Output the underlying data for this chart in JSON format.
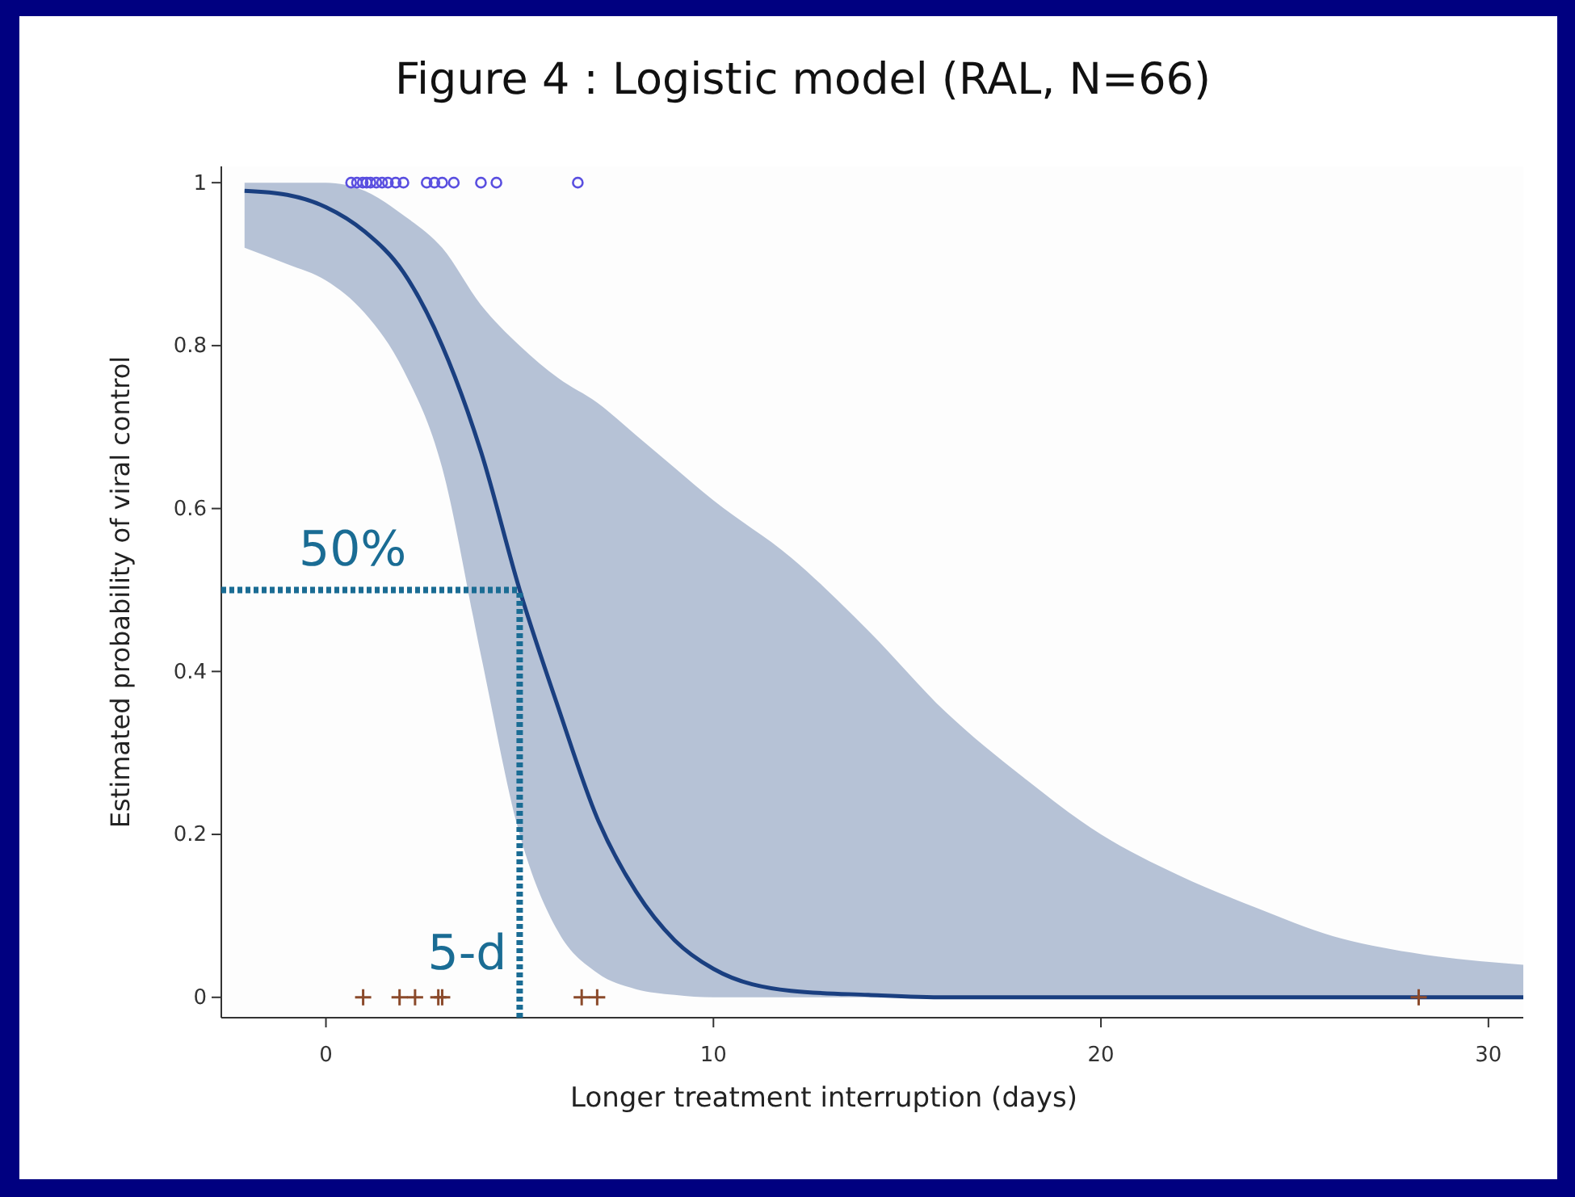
{
  "chart_data": {
    "type": "line",
    "title": "Figure 4 : Logistic model (RAL, N=66)",
    "xlabel": "Longer treatment interruption (days)",
    "ylabel": "Estimated probability of viral control",
    "xlim": [
      -2.7,
      30.9
    ],
    "xticks": [
      0,
      10,
      20,
      30
    ],
    "ylim": [
      -0.025,
      1.02
    ],
    "yticks": [
      0,
      0.2,
      0.4,
      0.6,
      0.8,
      1
    ],
    "grid": false,
    "series": [
      {
        "color": "#1a3f80",
        "line_style": "solid",
        "x": [
          -2.1,
          -1,
          0,
          1,
          2,
          3,
          4,
          5,
          6,
          7,
          8,
          9,
          10,
          12,
          14,
          16,
          18,
          20,
          22,
          24,
          26,
          28,
          30.9
        ],
        "values": [
          0.99,
          0.985,
          0.97,
          0.94,
          0.89,
          0.8,
          0.67,
          0.5,
          0.355,
          0.22,
          0.13,
          0.07,
          0.035,
          0.008,
          0.003,
          0,
          0,
          0,
          0,
          0,
          0,
          0,
          0
        ],
        "lower": [
          0.92,
          0.9,
          0.88,
          0.84,
          0.77,
          0.65,
          0.42,
          0.2,
          0.08,
          0.03,
          0.01,
          0.003,
          0,
          0,
          0,
          0,
          0,
          0,
          0,
          0,
          0,
          0,
          0
        ],
        "upper": [
          1,
          1,
          1,
          0.99,
          0.96,
          0.92,
          0.85,
          0.8,
          0.76,
          0.73,
          0.69,
          0.65,
          0.61,
          0.54,
          0.45,
          0.35,
          0.27,
          0.2,
          0.15,
          0.11,
          0.075,
          0.055,
          0.04
        ]
      },
      {
        "type": "scatter",
        "color": "#5a4fe0",
        "marker": "circle",
        "x": [
          0.65,
          0.8,
          0.95,
          1.05,
          1.15,
          1.3,
          1.45,
          1.6,
          1.8,
          2.0,
          2.6,
          2.8,
          3.0,
          3.3,
          4.0,
          4.4,
          6.5
        ],
        "values": [
          1,
          1,
          1,
          1,
          1,
          1,
          1,
          1,
          1,
          1,
          1,
          1,
          1,
          1,
          1,
          1,
          1
        ]
      },
      {
        "type": "scatter",
        "color": "#8b4a2b",
        "marker": "cross",
        "x": [
          0.96,
          1.9,
          2.3,
          2.9,
          3.0,
          6.6,
          7.0,
          28.2
        ],
        "values": [
          0,
          0,
          0,
          0,
          0,
          0,
          0,
          0
        ]
      }
    ],
    "ref_lines": [
      {
        "axis": "y",
        "value": 0.5,
        "label": "50%",
        "color": "#1a6c94",
        "line_style": "dotted"
      },
      {
        "axis": "x",
        "value": 5,
        "label": "5-d",
        "color": "#1a6c94",
        "line_style": "dotted"
      }
    ]
  }
}
